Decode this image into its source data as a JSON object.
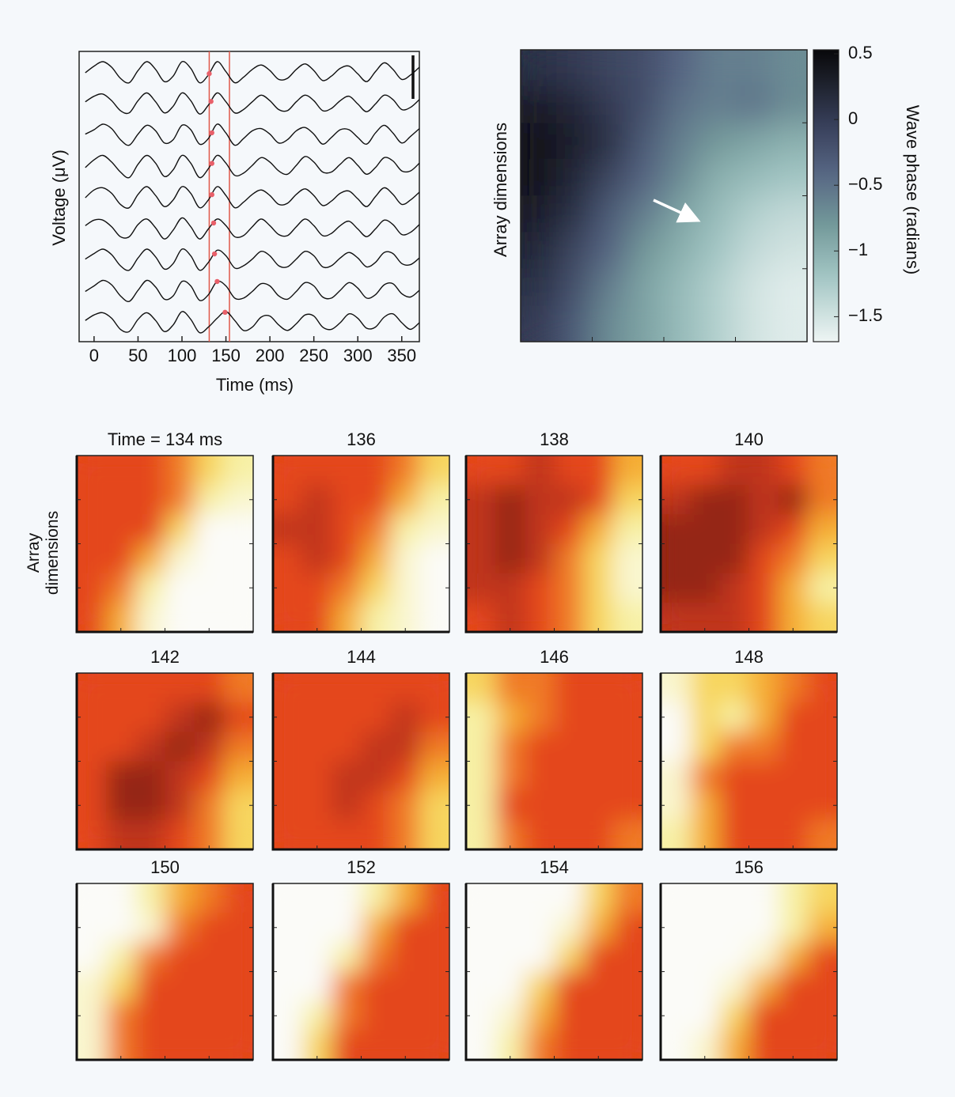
{
  "chart_data": [
    {
      "type": "line",
      "xlabel": "Time (ms)",
      "ylabel": "Voltage (μV)",
      "color": "#111111",
      "xlim": [
        -17,
        370
      ],
      "xticks": [
        0,
        50,
        100,
        150,
        200,
        250,
        300,
        350
      ],
      "vlines": [
        131,
        154
      ],
      "vline_color": "#e0584a",
      "peak_times": [
        131,
        133,
        134,
        134,
        134,
        136,
        137,
        140,
        149
      ],
      "peak_color": "#e8606a",
      "x": [
        -10,
        0,
        10,
        20,
        30,
        40,
        50,
        60,
        70,
        80,
        90,
        100,
        110,
        120,
        130,
        140,
        150,
        160,
        170,
        180,
        190,
        200,
        210,
        220,
        230,
        240,
        250,
        260,
        270,
        280,
        290,
        300,
        310,
        320,
        330,
        340,
        350,
        360,
        370
      ],
      "series": [
        {
          "values": [
            0,
            0.6,
            1,
            0.5,
            -0.5,
            -0.9,
            0.2,
            1,
            0.3,
            -0.8,
            -0.3,
            1,
            0.4,
            -0.9,
            -0.2,
            1,
            0.1,
            -0.9,
            -0.4,
            0.3,
            0.7,
            0.2,
            -0.6,
            -0.5,
            0.3,
            0.8,
            0.2,
            -0.7,
            -0.3,
            0.4,
            0.6,
            -0.1,
            -0.8,
            0.1,
            0.9,
            0.3,
            -0.6,
            -0.2,
            0.5
          ]
        },
        {
          "values": [
            0.2,
            0.7,
            0.9,
            0.3,
            -0.6,
            -0.8,
            0.3,
            1,
            0.2,
            -0.8,
            -0.2,
            1,
            0.3,
            -0.9,
            -0.1,
            1,
            0.2,
            -0.8,
            -0.5,
            0.2,
            0.8,
            0.3,
            -0.5,
            -0.6,
            0.2,
            0.8,
            0.3,
            -0.6,
            -0.4,
            0.3,
            0.7,
            0,
            -0.7,
            0,
            0.8,
            0.4,
            -0.5,
            -0.3,
            0.4
          ]
        },
        {
          "values": [
            0.1,
            0.5,
            1,
            0.6,
            -0.4,
            -0.9,
            0.1,
            0.9,
            0.4,
            -0.7,
            -0.4,
            0.9,
            0.5,
            -0.8,
            -0.3,
            1,
            0.2,
            -0.9,
            -0.3,
            0.4,
            0.6,
            0.1,
            -0.7,
            -0.4,
            0.4,
            0.7,
            0.1,
            -0.8,
            -0.2,
            0.5,
            0.5,
            -0.2,
            -0.8,
            0.2,
            0.9,
            0.2,
            -0.7,
            -0.1,
            0.6
          ]
        },
        {
          "values": [
            -0.1,
            0.6,
            1,
            0.4,
            -0.5,
            -1,
            0.2,
            1,
            0.3,
            -0.9,
            -0.3,
            1,
            0.3,
            -1,
            -0.2,
            1,
            0.3,
            -0.8,
            -0.6,
            0.1,
            0.8,
            0.4,
            -0.4,
            -0.7,
            0.1,
            0.9,
            0.4,
            -0.5,
            -0.5,
            0.2,
            0.8,
            0.1,
            -0.7,
            -0.1,
            0.8,
            0.5,
            -0.4,
            -0.4,
            0.3
          ]
        },
        {
          "values": [
            0,
            0.7,
            0.9,
            0.4,
            -0.6,
            -0.9,
            0.3,
            1,
            0.2,
            -0.8,
            -0.2,
            1,
            0.4,
            -0.9,
            -0.2,
            1,
            0.2,
            -0.9,
            -0.4,
            0.3,
            0.7,
            0.2,
            -0.6,
            -0.5,
            0.3,
            0.8,
            0.2,
            -0.7,
            -0.3,
            0.4,
            0.6,
            -0.1,
            -0.8,
            0.1,
            0.9,
            0.3,
            -0.6,
            -0.2,
            0.5
          ]
        },
        {
          "values": [
            0.3,
            0.8,
            0.8,
            0.2,
            -0.7,
            -0.7,
            0.4,
            0.9,
            0.1,
            -0.9,
            -0.1,
            1,
            0.2,
            -0.9,
            0,
            0.9,
            0.3,
            -0.7,
            -0.6,
            0.2,
            0.9,
            0.3,
            -0.5,
            -0.6,
            0.2,
            0.9,
            0.3,
            -0.6,
            -0.4,
            0.3,
            0.7,
            0,
            -0.7,
            0,
            0.8,
            0.4,
            -0.5,
            -0.3,
            0.4
          ]
        },
        {
          "values": [
            0.1,
            0.6,
            1,
            0.5,
            -0.5,
            -0.9,
            0.2,
            1,
            0.3,
            -0.8,
            -0.3,
            1,
            0.4,
            -0.9,
            -0.2,
            0.9,
            0.4,
            -0.7,
            -0.5,
            0.1,
            0.8,
            0.4,
            -0.5,
            -0.6,
            0.1,
            0.8,
            0.4,
            -0.6,
            -0.5,
            0.2,
            0.7,
            0.2,
            -0.6,
            -0.2,
            0.7,
            0.6,
            -0.3,
            -0.4,
            0.2
          ]
        },
        {
          "values": [
            0,
            0.5,
            1,
            0.6,
            -0.4,
            -0.9,
            0.1,
            1,
            0.4,
            -0.7,
            -0.4,
            0.9,
            0.5,
            -0.8,
            -0.3,
            0.9,
            0.5,
            -0.6,
            -0.6,
            0,
            0.7,
            0.5,
            -0.4,
            -0.7,
            0,
            0.8,
            0.5,
            -0.5,
            -0.6,
            0.1,
            0.8,
            0.3,
            -0.6,
            -0.3,
            0.6,
            0.7,
            -0.2,
            -0.5,
            0.1
          ]
        },
        {
          "values": [
            0.2,
            0.7,
            0.9,
            0.4,
            -0.6,
            -0.8,
            0.3,
            0.9,
            0.2,
            -0.8,
            -0.2,
            1,
            0.3,
            -0.9,
            -0.4,
            0.4,
            1,
            0.2,
            -0.7,
            -0.4,
            0.5,
            0.6,
            -0.2,
            -0.7,
            -0.1,
            0.7,
            0.6,
            -0.4,
            -0.6,
            0,
            0.8,
            0.4,
            -0.5,
            -0.4,
            0.5,
            0.8,
            0,
            -0.6,
            0
          ]
        }
      ]
    },
    {
      "type": "contour",
      "ylabel": "Array dimensions",
      "colorbar_label": "Wave phase (radians)",
      "clim": [
        -1.69,
        0.53
      ],
      "colorbar_ticks": [
        0.5,
        0,
        {
          "value": -0.5,
          "label": "−0.5"
        },
        {
          "value": -1,
          "label": "−1"
        },
        {
          "value": -1.5,
          "label": "−1.5"
        }
      ],
      "z": [
        [
          0.1,
          0.0,
          -0.1,
          -0.2,
          -0.4,
          -0.6,
          -0.6,
          -0.7
        ],
        [
          0.3,
          0.2,
          0.0,
          -0.2,
          -0.5,
          -0.6,
          -0.5,
          -0.7
        ],
        [
          0.4,
          0.3,
          0.1,
          -0.3,
          -0.6,
          -0.8,
          -0.9,
          -1.0
        ],
        [
          0.4,
          0.2,
          -0.1,
          -0.4,
          -0.7,
          -1.0,
          -1.1,
          -1.2
        ],
        [
          0.3,
          0.1,
          -0.3,
          -0.6,
          -0.9,
          -1.1,
          -1.3,
          -1.4
        ],
        [
          0.2,
          -0.1,
          -0.4,
          -0.8,
          -1.0,
          -1.2,
          -1.4,
          -1.5
        ],
        [
          0.1,
          -0.2,
          -0.6,
          -0.9,
          -1.1,
          -1.3,
          -1.5,
          -1.6
        ],
        [
          0.0,
          -0.3,
          -0.7,
          -0.9,
          -1.1,
          -1.3,
          -1.5,
          -1.6
        ]
      ]
    },
    {
      "type": "heatmap",
      "title": "Time = 134 ms",
      "clim": [
        0,
        9
      ],
      "z": [
        [
          6,
          6,
          6,
          5,
          3,
          2
        ],
        [
          6,
          6,
          6,
          5,
          2,
          1
        ],
        [
          6,
          6,
          6,
          3,
          0,
          0
        ],
        [
          6,
          6,
          4,
          1,
          0,
          0
        ],
        [
          6,
          5,
          2,
          0,
          0,
          0
        ],
        [
          6,
          4,
          1,
          0,
          0,
          0
        ]
      ]
    },
    {
      "type": "heatmap",
      "title": "136",
      "clim": [
        0,
        9
      ],
      "z": [
        [
          6,
          6,
          6,
          6,
          5,
          3
        ],
        [
          6,
          7,
          6,
          6,
          4,
          2
        ],
        [
          7,
          7,
          6,
          5,
          2,
          1
        ],
        [
          6,
          7,
          6,
          4,
          1,
          0
        ],
        [
          6,
          6,
          5,
          3,
          1,
          0
        ],
        [
          6,
          6,
          4,
          2,
          1,
          0
        ]
      ]
    },
    {
      "type": "heatmap",
      "title": "138",
      "clim": [
        0,
        9
      ],
      "z": [
        [
          6,
          6,
          7,
          6,
          6,
          4
        ],
        [
          7,
          8,
          7,
          7,
          6,
          3
        ],
        [
          7,
          8,
          7,
          6,
          4,
          2
        ],
        [
          7,
          8,
          7,
          5,
          3,
          1
        ],
        [
          7,
          7,
          6,
          5,
          3,
          1
        ],
        [
          6,
          7,
          6,
          5,
          3,
          2
        ]
      ]
    },
    {
      "type": "heatmap",
      "title": "140",
      "clim": [
        0,
        9
      ],
      "z": [
        [
          6,
          6,
          7,
          7,
          6,
          5
        ],
        [
          7,
          8,
          8,
          7,
          8,
          5
        ],
        [
          8,
          8,
          8,
          7,
          6,
          4
        ],
        [
          8,
          8,
          8,
          6,
          5,
          3
        ],
        [
          8,
          8,
          7,
          6,
          4,
          2
        ],
        [
          7,
          7,
          7,
          6,
          4,
          3
        ]
      ]
    },
    {
      "type": "heatmap",
      "title": "142",
      "clim": [
        0,
        9
      ],
      "z": [
        [
          6,
          6,
          6,
          6,
          6,
          5
        ],
        [
          6,
          6,
          6,
          7,
          8,
          6
        ],
        [
          6,
          6,
          7,
          8,
          7,
          5
        ],
        [
          6,
          8,
          8,
          7,
          6,
          4
        ],
        [
          6,
          8,
          8,
          7,
          5,
          3
        ],
        [
          6,
          7,
          7,
          6,
          5,
          3
        ]
      ]
    },
    {
      "type": "heatmap",
      "title": "144",
      "clim": [
        0,
        9
      ],
      "z": [
        [
          6,
          6,
          6,
          6,
          6,
          6
        ],
        [
          6,
          6,
          6,
          6,
          7,
          6
        ],
        [
          6,
          6,
          6,
          7,
          7,
          5
        ],
        [
          6,
          6,
          7,
          7,
          6,
          4
        ],
        [
          6,
          6,
          7,
          6,
          5,
          3
        ],
        [
          6,
          6,
          6,
          6,
          5,
          3
        ]
      ]
    },
    {
      "type": "heatmap",
      "title": "146",
      "clim": [
        0,
        9
      ],
      "z": [
        [
          3,
          5,
          5,
          6,
          6,
          6
        ],
        [
          2,
          4,
          5,
          6,
          6,
          6
        ],
        [
          2,
          5,
          6,
          6,
          6,
          6
        ],
        [
          2,
          5,
          6,
          6,
          6,
          6
        ],
        [
          2,
          6,
          6,
          6,
          6,
          6
        ],
        [
          2,
          5,
          6,
          6,
          6,
          5
        ]
      ]
    },
    {
      "type": "heatmap",
      "title": "148",
      "clim": [
        0,
        9
      ],
      "z": [
        [
          1,
          3,
          3,
          4,
          5,
          6
        ],
        [
          0,
          3,
          2,
          4,
          6,
          6
        ],
        [
          0,
          3,
          5,
          5,
          6,
          6
        ],
        [
          1,
          5,
          6,
          6,
          6,
          6
        ],
        [
          1,
          4,
          6,
          6,
          6,
          6
        ],
        [
          2,
          4,
          6,
          6,
          6,
          5
        ]
      ]
    },
    {
      "type": "heatmap",
      "title": "150",
      "clim": [
        0,
        9
      ],
      "z": [
        [
          0,
          0,
          2,
          4,
          5,
          6
        ],
        [
          0,
          0,
          1,
          5,
          6,
          6
        ],
        [
          0,
          2,
          5,
          6,
          6,
          6
        ],
        [
          1,
          3,
          6,
          6,
          6,
          6
        ],
        [
          1,
          5,
          6,
          6,
          6,
          6
        ],
        [
          1,
          5,
          6,
          6,
          6,
          6
        ]
      ]
    },
    {
      "type": "heatmap",
      "title": "152",
      "clim": [
        0,
        9
      ],
      "z": [
        [
          0,
          0,
          0,
          2,
          4,
          6
        ],
        [
          0,
          0,
          0,
          4,
          6,
          6
        ],
        [
          0,
          0,
          2,
          5,
          6,
          6
        ],
        [
          0,
          0,
          5,
          6,
          6,
          6
        ],
        [
          0,
          2,
          5,
          6,
          6,
          6
        ],
        [
          0,
          3,
          6,
          6,
          6,
          6
        ]
      ]
    },
    {
      "type": "heatmap",
      "title": "154",
      "clim": [
        0,
        9
      ],
      "z": [
        [
          0,
          0,
          0,
          0,
          3,
          5
        ],
        [
          0,
          0,
          0,
          1,
          4,
          6
        ],
        [
          0,
          0,
          0,
          3,
          6,
          6
        ],
        [
          0,
          0,
          3,
          6,
          6,
          6
        ],
        [
          0,
          1,
          4,
          6,
          6,
          6
        ],
        [
          0,
          2,
          5,
          6,
          6,
          6
        ]
      ]
    },
    {
      "type": "heatmap",
      "title": "156",
      "clim": [
        0,
        9
      ],
      "z": [
        [
          0,
          0,
          0,
          0,
          2,
          3
        ],
        [
          0,
          0,
          0,
          0,
          2,
          4
        ],
        [
          0,
          0,
          0,
          1,
          4,
          6
        ],
        [
          0,
          0,
          1,
          4,
          6,
          6
        ],
        [
          0,
          0,
          3,
          6,
          6,
          6
        ],
        [
          0,
          1,
          4,
          6,
          6,
          6
        ]
      ]
    }
  ],
  "side_label": "Array dimensions"
}
